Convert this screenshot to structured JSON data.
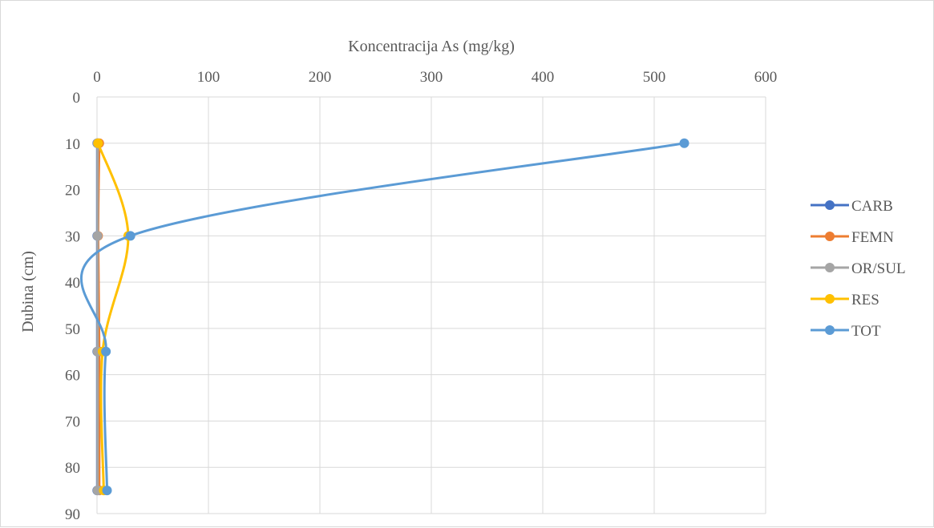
{
  "chart_data": {
    "type": "scatter",
    "title": "",
    "xlabel": "Koncentracija As (mg/kg)",
    "ylabel": "Dubina (cm)",
    "xlim": [
      0,
      600
    ],
    "ylim": [
      0,
      90
    ],
    "y_reversed": true,
    "x_axis_position": "top",
    "x_ticks": [
      0,
      100,
      200,
      300,
      400,
      500,
      600
    ],
    "y_ticks": [
      0,
      10,
      20,
      30,
      40,
      50,
      60,
      70,
      80,
      90
    ],
    "grid": true,
    "smooth_lines": true,
    "legend_position": "right",
    "depths": [
      10,
      30,
      55,
      85
    ],
    "series": [
      {
        "name": "CARB",
        "color": "#4472c4",
        "x": [
          0.2,
          0.2,
          0.2,
          0.2
        ]
      },
      {
        "name": "FEMN",
        "color": "#ed7d31",
        "x": [
          2,
          1,
          2,
          2
        ]
      },
      {
        "name": "OR/SUL",
        "color": "#a5a5a5",
        "x": [
          0.5,
          0.5,
          0.5,
          0.5
        ]
      },
      {
        "name": "RES",
        "color": "#ffc000",
        "x": [
          1,
          28,
          5,
          6
        ]
      },
      {
        "name": "TOT",
        "color": "#5b9bd5",
        "x": [
          527,
          30,
          8,
          9
        ]
      }
    ]
  }
}
